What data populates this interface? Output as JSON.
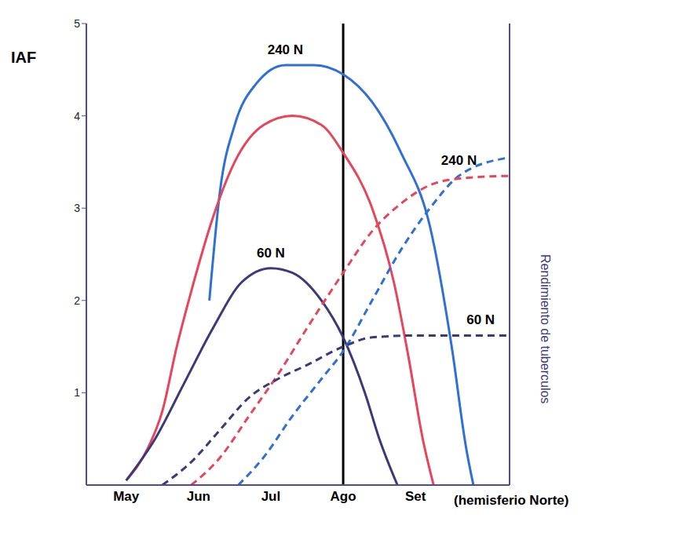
{
  "chart_data": {
    "type": "line",
    "ylabel": "IAF",
    "y2label": "Rendimiento de tuberculos",
    "xlabel": "(hemisferio Norte)",
    "xlim": [
      4.45,
      10.3
    ],
    "xticks": [
      {
        "value": 5,
        "label": "May"
      },
      {
        "value": 6,
        "label": "Jun"
      },
      {
        "value": 7,
        "label": "Jul"
      },
      {
        "value": 8,
        "label": "Ago"
      },
      {
        "value": 9,
        "label": "Set"
      }
    ],
    "ylim": [
      0,
      5
    ],
    "yticks": [
      1,
      2,
      3,
      4,
      5
    ],
    "y2lim": [
      0,
      5
    ],
    "y2ticks": [],
    "vline": 8,
    "grid": false,
    "series": [
      {
        "name": "240 N",
        "color": "#2f6fd6",
        "line_style": "solid",
        "x": [
          6.15,
          6.3,
          6.5,
          6.8,
          7.2,
          7.6,
          8.0,
          8.4,
          8.8,
          9.2,
          9.5,
          9.7,
          9.8
        ],
        "values": [
          2.0,
          3.2,
          3.9,
          4.35,
          4.55,
          4.55,
          4.45,
          4.15,
          3.6,
          2.8,
          1.5,
          0.4,
          0
        ]
      },
      {
        "color": "#e8455a",
        "line_style": "solid",
        "x": [
          5.0,
          5.3,
          5.5,
          5.7,
          5.9,
          6.2,
          6.5,
          6.9,
          7.3,
          7.7,
          8.0,
          8.4,
          8.7,
          8.9,
          9.1,
          9.25
        ],
        "values": [
          0.05,
          0.4,
          0.8,
          1.5,
          2.1,
          2.9,
          3.5,
          3.9,
          4.0,
          3.9,
          3.6,
          3.0,
          2.2,
          1.4,
          0.5,
          0
        ]
      },
      {
        "name": "60 N",
        "color": "#3a3a7a",
        "line_style": "solid",
        "x": [
          5.0,
          5.4,
          5.8,
          6.2,
          6.6,
          7.0,
          7.3,
          7.7,
          8.0,
          8.3,
          8.5,
          8.75
        ],
        "values": [
          0.05,
          0.5,
          1.1,
          1.7,
          2.2,
          2.35,
          2.3,
          2.0,
          1.6,
          1.0,
          0.5,
          0
        ]
      },
      {
        "name": "240 N",
        "color": "#2f6fd6",
        "line_style": "dashed",
        "axis": "y2",
        "x": [
          6.55,
          6.9,
          7.3,
          7.7,
          8.0,
          8.4,
          8.8,
          9.2,
          9.6,
          10.3
        ],
        "values": [
          0,
          0.3,
          0.75,
          1.15,
          1.45,
          2.0,
          2.55,
          3.0,
          3.35,
          3.55
        ]
      },
      {
        "color": "#e8455a",
        "line_style": "dashed",
        "axis": "y2",
        "x": [
          5.9,
          6.3,
          6.7,
          7.1,
          7.5,
          8.0,
          8.4,
          8.8,
          9.2,
          9.6,
          10.3
        ],
        "values": [
          0,
          0.3,
          0.75,
          1.2,
          1.7,
          2.3,
          2.75,
          3.05,
          3.25,
          3.32,
          3.35
        ]
      },
      {
        "name": "60 N",
        "color": "#3a3a7a",
        "line_style": "dashed",
        "axis": "y2",
        "x": [
          5.5,
          5.9,
          6.3,
          6.7,
          7.1,
          7.5,
          8.0,
          8.4,
          9.0,
          9.9,
          10.3
        ],
        "values": [
          0,
          0.25,
          0.6,
          0.95,
          1.15,
          1.3,
          1.5,
          1.6,
          1.62,
          1.62,
          1.62
        ]
      }
    ]
  }
}
